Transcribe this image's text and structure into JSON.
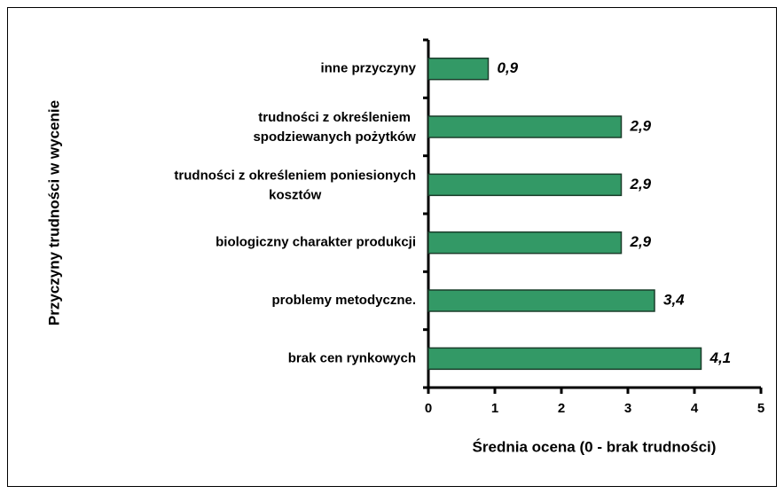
{
  "chart_data": {
    "type": "barh",
    "categories": [
      "inne przyczyny",
      "trudności z określeniem\nspodziewanych pożytków",
      "trudności z określeniem poniesionych\nkosztów",
      "biologiczny charakter produkcji",
      "problemy metodyczne.",
      "brak cen rynkowych"
    ],
    "values": [
      0.9,
      2.9,
      2.9,
      2.9,
      3.4,
      4.1
    ],
    "value_labels": [
      "0,9",
      "2,9",
      "2,9",
      "2,9",
      "3,4",
      "4,1"
    ],
    "color": "#339966",
    "xlim": [
      0,
      5
    ],
    "xticks": [
      0,
      1,
      2,
      3,
      4,
      5
    ],
    "xlabel": "Średnia ocena (0 - brak trudności)",
    "ylabel": "Przyczyny trudności w wycenie"
  }
}
